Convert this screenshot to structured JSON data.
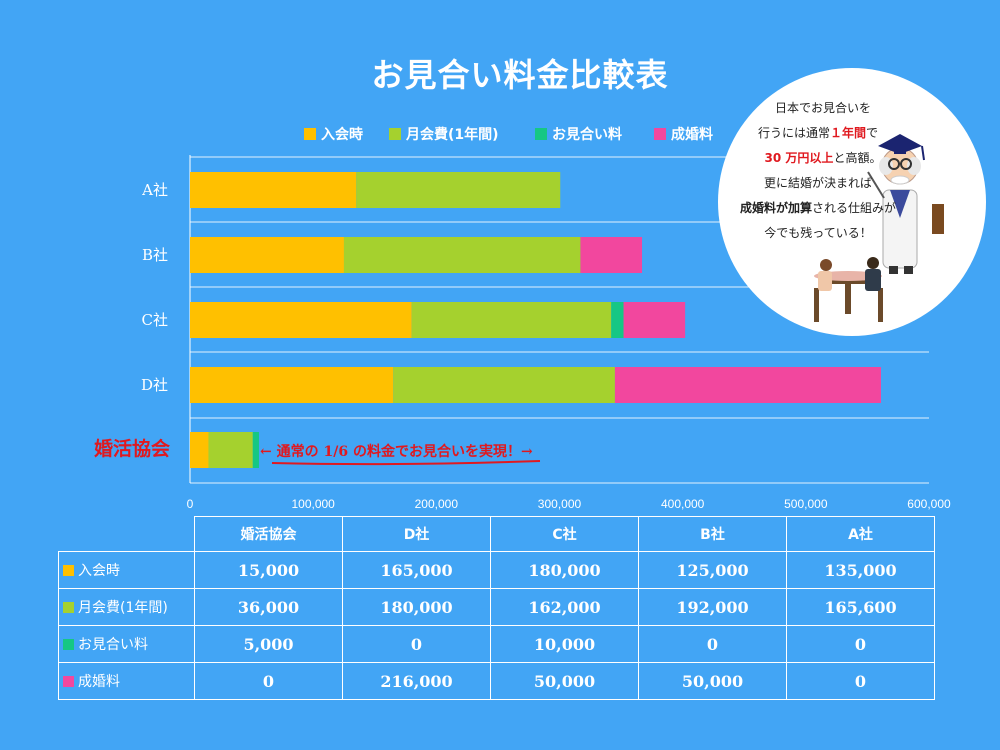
{
  "title": "お見合い料金比較表",
  "colors": {
    "入会時": "#ffc000",
    "月会費": "#a5d12e",
    "お見合い料": "#16c784",
    "成婚料": "#f2479e",
    "highlight": "#e0191f"
  },
  "chart_data": {
    "type": "bar",
    "orientation": "horizontal",
    "stacked": true,
    "categories": [
      "A社",
      "B社",
      "C社",
      "D社",
      "婚活協会"
    ],
    "series": [
      {
        "name": "入会時",
        "values": [
          135000,
          125000,
          180000,
          165000,
          15000
        ]
      },
      {
        "name": "月会費(1年間)",
        "values": [
          165600,
          192000,
          162000,
          180000,
          36000
        ]
      },
      {
        "name": "お見合い料",
        "values": [
          0,
          0,
          10000,
          0,
          5000
        ]
      },
      {
        "name": "成婚料",
        "values": [
          0,
          50000,
          50000,
          216000,
          0
        ]
      }
    ],
    "xlim": [
      0,
      600000
    ],
    "xticks": [
      "0",
      "100,000",
      "200,000",
      "300,000",
      "400,000",
      "500,000",
      "600,000"
    ],
    "legend_position": "top",
    "grid": true,
    "annotation": "← 通常の 1/6 の料金でお見合いを実現！→"
  },
  "bubble": {
    "line1": "日本でお見合いを",
    "line2a": "行うには通常",
    "line2b": "１年間",
    "line2c": "で",
    "line3a": "30 万円以上",
    "line3b": "と高額。",
    "line4": "更に結婚が決まれば",
    "line5a": "成婚料が加算",
    "line5b": "される仕組みが",
    "line6": "今でも残っている！"
  },
  "table": {
    "columns": [
      "婚活協会",
      "D社",
      "C社",
      "B社",
      "A社"
    ],
    "rows": [
      {
        "label": "入会時",
        "values": [
          "15,000",
          "165,000",
          "180,000",
          "125,000",
          "135,000"
        ]
      },
      {
        "label": "月会費(1年間)",
        "values": [
          "36,000",
          "180,000",
          "162,000",
          "192,000",
          "165,600"
        ]
      },
      {
        "label": "お見合い料",
        "values": [
          "5,000",
          "0",
          "10,000",
          "0",
          "0"
        ]
      },
      {
        "label": "成婚料",
        "values": [
          "0",
          "216,000",
          "50,000",
          "50,000",
          "0"
        ]
      }
    ]
  }
}
